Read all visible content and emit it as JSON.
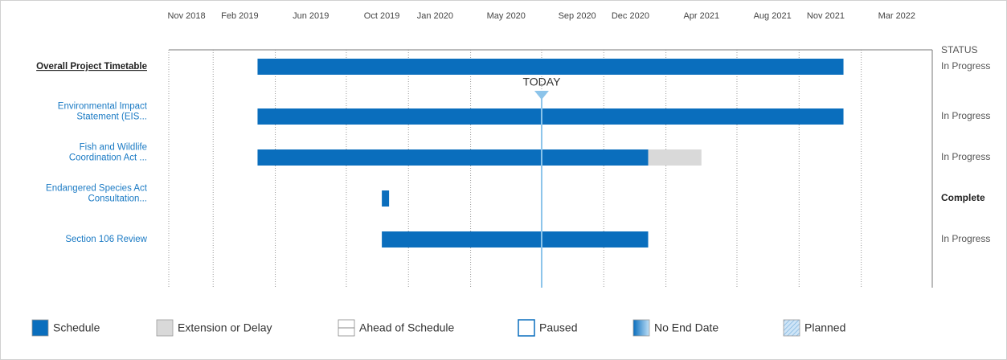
{
  "chart_data": {
    "type": "gantt",
    "categories": [
      [
        "Overall Project Timetable"
      ],
      [
        "Environmental Impact",
        "Statement (EIS..."
      ],
      [
        "Fish and Wildlife",
        "Coordination Act ..."
      ],
      [
        "Endangered Species Act",
        "Consultation..."
      ],
      [
        "Section 106 Review"
      ]
    ],
    "xlim": [
      "2018-10",
      "2022-05"
    ],
    "xticks": [
      {
        "value": "2018-11",
        "label": "Nov 2018"
      },
      {
        "value": "2019-02",
        "label": "Feb 2019"
      },
      {
        "value": "2019-06",
        "label": "Jun 2019"
      },
      {
        "value": "2019-10",
        "label": "Oct 2019"
      },
      {
        "value": "2020-01",
        "label": "Jan 2020"
      },
      {
        "value": "2020-05",
        "label": "May 2020"
      },
      {
        "value": "2020-09",
        "label": "Sep 2020"
      },
      {
        "value": "2020-12",
        "label": "Dec 2020"
      },
      {
        "value": "2021-04",
        "label": "Apr 2021"
      },
      {
        "value": "2021-08",
        "label": "Aug 2021"
      },
      {
        "value": "2021-11",
        "label": "Nov 2021"
      },
      {
        "value": "2022-03",
        "label": "Mar 2022"
      }
    ],
    "grid": true,
    "series": [
      {
        "name": "Schedule",
        "color": "#0a6ebd",
        "style": "solid",
        "starts": [
          "2019-03",
          "2019-03",
          "2019-03",
          "2019-10",
          "2019-10"
        ],
        "ends": [
          "2021-12",
          "2021-12",
          "2021-01",
          "2019-10",
          "2021-01"
        ]
      },
      {
        "name": "Extension or Delay",
        "color": "#d9d9d9",
        "style": "solid",
        "starts": [
          null,
          null,
          "2021-01",
          null,
          null
        ],
        "ends": [
          null,
          null,
          "2021-04",
          null,
          null
        ]
      },
      {
        "name": "Ahead of Schedule",
        "color": "#888888",
        "style": "line",
        "starts": [
          null,
          null,
          null,
          null,
          null
        ],
        "ends": [
          null,
          null,
          null,
          null,
          null
        ]
      },
      {
        "name": "Paused",
        "color": "#0a6ebd",
        "style": "outline",
        "starts": [
          null,
          null,
          null,
          null,
          null
        ],
        "ends": [
          null,
          null,
          null,
          null,
          null
        ]
      },
      {
        "name": "No End Date",
        "color": "#0a6ebd",
        "style": "gradient",
        "starts": [
          null,
          null,
          null,
          null,
          null
        ],
        "ends": [
          null,
          null,
          null,
          null,
          null
        ]
      },
      {
        "name": "Planned",
        "color": "#9cc7ea",
        "style": "hatch",
        "starts": [
          null,
          null,
          null,
          null,
          null
        ],
        "ends": [
          null,
          null,
          null,
          null,
          null
        ]
      }
    ],
    "status_header": "STATUS",
    "status": [
      "In Progress",
      "In Progress",
      "In Progress",
      "Complete",
      "In Progress"
    ],
    "today": {
      "label": "TODAY",
      "date": "2020-07",
      "color": "#8cc4ea"
    }
  }
}
